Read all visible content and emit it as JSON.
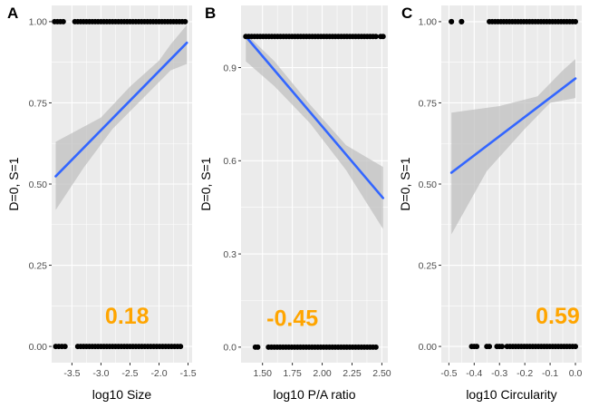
{
  "colors": {
    "panel_bg": "#ebebeb",
    "grid": "#ffffff",
    "point": "#000000",
    "line": "#3366ff",
    "ribbon": "#bdbdbd",
    "annotation": "#ffa500",
    "tick_text": "#4d4d4d"
  },
  "chart_data": [
    {
      "type": "scatter",
      "panel_label": "A",
      "xlabel": "log10 Size",
      "ylabel": "D=0, S=1",
      "xlim": [
        -3.85,
        -1.43
      ],
      "ylim": [
        -0.05,
        1.05
      ],
      "xticks": [
        -3.5,
        -3.0,
        -2.5,
        -2.0,
        -1.5
      ],
      "xtick_labels": [
        "-3.5",
        "-3.0",
        "-2.5",
        "-2.0",
        "-1.5"
      ],
      "yticks": [
        0.0,
        0.25,
        0.5,
        0.75,
        1.0
      ],
      "ytick_labels": [
        "0.00",
        "0.25",
        "0.50",
        "0.75",
        "1.00"
      ],
      "grid": true,
      "points_y1": [
        [
          -3.8,
          -3.65
        ],
        [
          -3.45,
          -1.55
        ]
      ],
      "points_y0": [
        [
          -3.78,
          -3.62
        ],
        [
          -3.4,
          -2.5
        ],
        [
          -2.45,
          -1.63
        ]
      ],
      "fit_line": [
        [
          -3.78,
          0.524
        ],
        [
          -1.52,
          0.935
        ]
      ],
      "ribbon_upper": [
        [
          -3.78,
          0.63
        ],
        [
          -3.0,
          0.705
        ],
        [
          -2.5,
          0.8
        ],
        [
          -2.0,
          0.88
        ],
        [
          -1.8,
          0.93
        ],
        [
          -1.52,
          0.99
        ]
      ],
      "ribbon_lower": [
        [
          -3.78,
          0.42
        ],
        [
          -3.3,
          0.55
        ],
        [
          -2.8,
          0.67
        ],
        [
          -2.3,
          0.76
        ],
        [
          -1.8,
          0.85
        ],
        [
          -1.52,
          0.87
        ]
      ],
      "annotation": "0.18",
      "annotation_pos": [
        -2.55,
        0.095
      ]
    },
    {
      "type": "scatter",
      "panel_label": "B",
      "xlabel": "log10 P/A ratio",
      "ylabel": "D=0, S=1",
      "xlim": [
        1.32,
        2.55
      ],
      "ylim": [
        -0.05,
        1.1
      ],
      "xticks": [
        1.5,
        1.75,
        2.0,
        2.25,
        2.5
      ],
      "xtick_labels": [
        "1.50",
        "1.75",
        "2.00",
        "2.25",
        "2.50"
      ],
      "yticks": [
        0.0,
        0.3,
        0.6,
        0.9
      ],
      "ytick_labels": [
        "0.0",
        "0.3",
        "0.6",
        "0.9"
      ],
      "grid": true,
      "points_y1": [
        [
          1.36,
          2.45
        ],
        [
          2.49,
          2.51
        ]
      ],
      "points_y0": [
        [
          1.44,
          1.46
        ],
        [
          1.55,
          2.45
        ]
      ],
      "fit_line": [
        [
          1.36,
          1.0
        ],
        [
          2.51,
          0.48
        ]
      ],
      "ribbon_upper": [
        [
          1.36,
          1.01
        ],
        [
          1.6,
          0.92
        ],
        [
          1.9,
          0.78
        ],
        [
          2.2,
          0.65
        ],
        [
          2.51,
          0.58
        ]
      ],
      "ribbon_lower": [
        [
          1.36,
          0.92
        ],
        [
          1.6,
          0.84
        ],
        [
          1.9,
          0.72
        ],
        [
          2.2,
          0.57
        ],
        [
          2.51,
          0.38
        ]
      ],
      "annotation": "-0.45",
      "annotation_pos": [
        1.75,
        0.095
      ]
    },
    {
      "type": "scatter",
      "panel_label": "C",
      "xlabel": "log10 Circularity",
      "ylabel": "D=0, S=1",
      "xlim": [
        -0.53,
        0.025
      ],
      "ylim": [
        -0.05,
        1.05
      ],
      "xticks": [
        -0.5,
        -0.4,
        -0.3,
        -0.2,
        -0.1,
        0.0
      ],
      "xtick_labels": [
        "-0.5",
        "-0.4",
        "-0.3",
        "-0.2",
        "-0.1",
        "0.0"
      ],
      "yticks": [
        0.0,
        0.25,
        0.5,
        0.75,
        1.0
      ],
      "ytick_labels": [
        "0.00",
        "0.25",
        "0.50",
        "0.75",
        "1.00"
      ],
      "grid": true,
      "points_y1": [
        [
          -0.49,
          -0.49
        ],
        [
          -0.45,
          -0.45
        ],
        [
          -0.34,
          0.0
        ]
      ],
      "points_y0": [
        [
          -0.41,
          -0.39
        ],
        [
          -0.35,
          -0.34
        ],
        [
          -0.31,
          -0.29
        ],
        [
          -0.27,
          0.0
        ]
      ],
      "fit_line": [
        [
          -0.49,
          0.535
        ],
        [
          0.0,
          0.825
        ]
      ],
      "ribbon_upper": [
        [
          -0.49,
          0.72
        ],
        [
          -0.3,
          0.74
        ],
        [
          -0.15,
          0.77
        ],
        [
          -0.05,
          0.85
        ],
        [
          0.0,
          0.885
        ]
      ],
      "ribbon_lower": [
        [
          -0.49,
          0.345
        ],
        [
          -0.35,
          0.54
        ],
        [
          -0.2,
          0.67
        ],
        [
          -0.1,
          0.75
        ],
        [
          0.0,
          0.765
        ]
      ],
      "annotation": "0.59",
      "annotation_pos": [
        -0.07,
        0.095
      ]
    }
  ]
}
